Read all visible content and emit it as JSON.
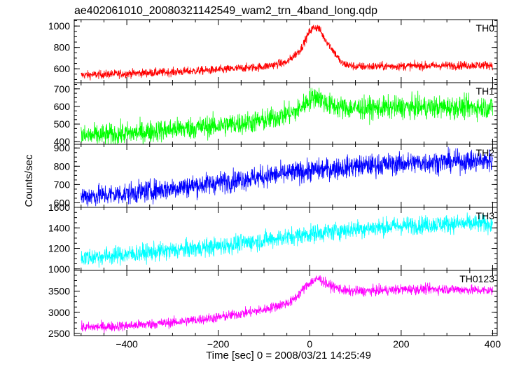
{
  "chart_data": {
    "type": "line",
    "title": "ae402061010_20080321142549_wam2_trn_4band_long.qdp",
    "xlabel": "Time [sec] 0 = 2008/03/21 14:25:49",
    "ylabel": "Counts/sec",
    "xlim": [
      -515,
      410
    ],
    "xticks": [
      -400,
      -200,
      0,
      200,
      400
    ],
    "grid": false,
    "panels": [
      {
        "name": "TH0",
        "color": "#ff0000",
        "ylim": [
          470,
          1060
        ],
        "yticks": [
          600,
          800,
          1000
        ],
        "x": [
          -500,
          -400,
          -300,
          -200,
          -100,
          -50,
          -20,
          0,
          10,
          20,
          30,
          50,
          70,
          100,
          200,
          300,
          400
        ],
        "y": [
          540,
          555,
          570,
          590,
          620,
          660,
          780,
          950,
          990,
          980,
          900,
          780,
          650,
          620,
          625,
          630,
          635
        ],
        "noise": 20
      },
      {
        "name": "TH1",
        "color": "#00ff00",
        "ylim": [
          385,
          735
        ],
        "yticks": [
          400,
          500,
          600,
          700
        ],
        "x": [
          -500,
          -400,
          -300,
          -200,
          -100,
          -30,
          0,
          15,
          40,
          80,
          120,
          200,
          300,
          400
        ],
        "y": [
          430,
          445,
          470,
          490,
          520,
          570,
          640,
          660,
          610,
          590,
          590,
          595,
          595,
          595
        ],
        "noise": 32
      },
      {
        "name": "TH2",
        "color": "#0000ff",
        "ylim": [
          575,
          920
        ],
        "yticks": [
          600,
          700,
          800,
          900
        ],
        "x": [
          -500,
          -400,
          -300,
          -200,
          -100,
          0,
          100,
          200,
          300,
          400
        ],
        "y": [
          635,
          650,
          680,
          710,
          745,
          775,
          800,
          815,
          825,
          830
        ],
        "noise": 30
      },
      {
        "name": "TH3",
        "color": "#00ffff",
        "ylim": [
          985,
          1600
        ],
        "yticks": [
          1000,
          1200,
          1400,
          1600
        ],
        "x": [
          -500,
          -400,
          -300,
          -200,
          -100,
          0,
          100,
          200,
          300,
          400
        ],
        "y": [
          1110,
          1140,
          1180,
          1220,
          1280,
          1340,
          1390,
          1420,
          1440,
          1440
        ],
        "noise": 45
      },
      {
        "name": "TH0123",
        "color": "#ff00ff",
        "ylim": [
          2450,
          3990
        ],
        "yticks": [
          2500,
          3000,
          3500
        ],
        "x": [
          -500,
          -400,
          -300,
          -200,
          -100,
          -40,
          0,
          20,
          40,
          80,
          120,
          200,
          300,
          400
        ],
        "y": [
          2640,
          2680,
          2760,
          2880,
          3060,
          3250,
          3700,
          3800,
          3650,
          3500,
          3500,
          3540,
          3550,
          3510
        ],
        "noise": 60
      }
    ]
  }
}
